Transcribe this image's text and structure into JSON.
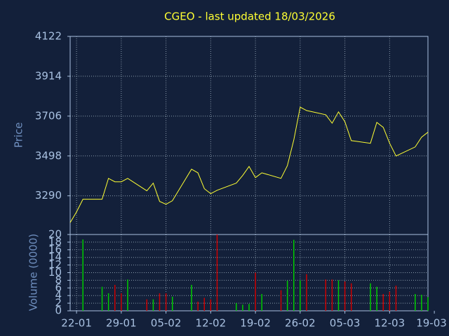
{
  "chart_data": [
    {
      "type": "line",
      "title": "CGEO - last updated 18/03/2026",
      "ylabel": "Price",
      "color": "#ffff33",
      "grid": true,
      "x": [
        "21-01",
        "22-01",
        "23-01",
        "26-01",
        "27-01",
        "28-01",
        "29-01",
        "30-01",
        "02-02",
        "03-02",
        "04-02",
        "05-02",
        "06-02",
        "09-02",
        "10-02",
        "11-02",
        "12-02",
        "13-02",
        "16-02",
        "17-02",
        "18-02",
        "19-02",
        "20-02",
        "23-02",
        "24-02",
        "25-02",
        "26-02",
        "27-02",
        "02-03",
        "03-03",
        "04-03",
        "05-03",
        "06-03",
        "09-03",
        "10-03",
        "11-03",
        "12-03",
        "13-03",
        "16-03",
        "17-03",
        "18-03"
      ],
      "xlim": [
        "21-01",
        "18-03"
      ],
      "xticks": [
        "22-01",
        "29-01",
        "05-02",
        "12-02",
        "19-02",
        "26-02",
        "05-03",
        "12-03",
        "19-03"
      ],
      "ylim": [
        3088,
        4122
      ],
      "yticks": [
        3290,
        3498,
        3706,
        3914,
        4122
      ],
      "series": [
        {
          "values": [
            3150,
            3206,
            3272,
            3272,
            3381,
            3363,
            3363,
            3381,
            3316,
            3356,
            3261,
            3246,
            3264,
            3429,
            3410,
            3327,
            3301,
            3319,
            3356,
            3396,
            3443,
            3385,
            3410,
            3381,
            3447,
            3582,
            3753,
            3735,
            3713,
            3669,
            3728,
            3677,
            3578,
            3564,
            3673,
            3647,
            3564,
            3498,
            3545,
            3596,
            3622
          ]
        }
      ]
    },
    {
      "type": "bar",
      "ylabel": "Volume (0000)",
      "grid": true,
      "ylim": [
        0,
        20
      ],
      "yticks": [
        0,
        2,
        4,
        6,
        8,
        10,
        12,
        14,
        16,
        18,
        20
      ],
      "values": [
        0,
        0,
        18.7,
        6.3,
        4.6,
        6.8,
        4.6,
        8.2,
        3,
        3,
        4.6,
        4.6,
        3.7,
        6.8,
        2.4,
        3.4,
        3,
        20,
        2,
        1.6,
        1.8,
        10,
        4.4,
        5.4,
        7.9,
        18.6,
        8,
        9.6,
        8.2,
        8.2,
        8,
        7.7,
        7.2,
        7.2,
        6.3,
        4.4,
        5,
        6.6,
        4.4,
        4.2,
        3.6
      ],
      "colors": [
        "#00cc00",
        "#00cc00",
        "#00cc00",
        "#00cc00",
        "#00cc00",
        "#cc0000",
        "#cc0000",
        "#00cc00",
        "#cc0000",
        "#00cc00",
        "#cc0000",
        "#cc0000",
        "#00cc00",
        "#00cc00",
        "#cc0000",
        "#cc0000",
        "#cc0000",
        "#cc0000",
        "#00cc00",
        "#00cc00",
        "#00cc00",
        "#cc0000",
        "#00cc00",
        "#cc0000",
        "#00cc00",
        "#00cc00",
        "#00cc00",
        "#cc0000",
        "#cc0000",
        "#cc0000",
        "#00cc00",
        "#cc0000",
        "#cc0000",
        "#00cc00",
        "#00cc00",
        "#cc0000",
        "#cc0000",
        "#cc0000",
        "#00cc00",
        "#00cc00",
        "#00cc00"
      ]
    }
  ]
}
